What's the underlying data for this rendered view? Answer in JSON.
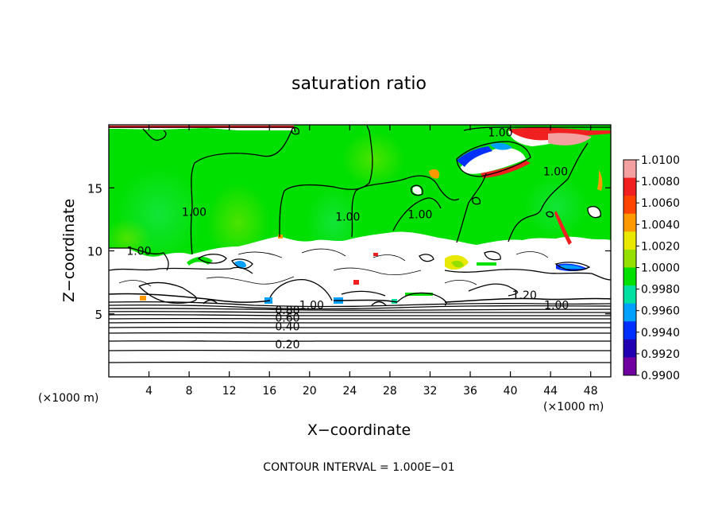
{
  "chart_data": {
    "type": "heatmap",
    "title": "saturation ratio",
    "xlabel": "X−coordinate",
    "ylabel": "Z−coordinate",
    "x_unit_left": "(×1000 m)",
    "x_unit_right": "(×1000 m)",
    "xlim": [
      0,
      50
    ],
    "ylim": [
      0,
      20
    ],
    "x_ticks": [
      4,
      8,
      12,
      16,
      20,
      24,
      28,
      32,
      36,
      40,
      44,
      48
    ],
    "y_ticks": [
      5,
      10,
      15
    ],
    "footer": "CONTOUR INTERVAL = 1.000E−01",
    "colorbar": {
      "levels": [
        "1.0100",
        "1.0080",
        "1.0060",
        "1.0040",
        "1.0020",
        "1.0000",
        "0.9980",
        "0.9960",
        "0.9940",
        "0.9920",
        "0.9900"
      ],
      "colors": [
        "#f4a0a0",
        "#f02020",
        "#ff4400",
        "#ff9900",
        "#e8e800",
        "#96e000",
        "#00e000",
        "#00e0a0",
        "#00a0ff",
        "#0030ff",
        "#2000b0",
        "#7000a0"
      ]
    },
    "contour_labels": [
      {
        "text": "1.00",
        "x": 39.0,
        "z": 19.4
      },
      {
        "text": "1.00",
        "x": 44.5,
        "z": 16.3
      },
      {
        "text": "1.00",
        "x": 8.5,
        "z": 13.1
      },
      {
        "text": "1.00",
        "x": 23.8,
        "z": 12.7
      },
      {
        "text": "1.00",
        "x": 31.0,
        "z": 12.9
      },
      {
        "text": "1.00",
        "x": 3.0,
        "z": 10.0
      },
      {
        "text": "1.20",
        "x": 41.4,
        "z": 6.5
      },
      {
        "text": "1.00",
        "x": 44.6,
        "z": 5.7
      },
      {
        "text": "1.00",
        "x": 20.2,
        "z": 5.7
      },
      {
        "text": "0.80",
        "x": 17.8,
        "z": 5.3
      },
      {
        "text": "0.60",
        "x": 17.8,
        "z": 4.7
      },
      {
        "text": "0.40",
        "x": 17.8,
        "z": 4.0
      },
      {
        "text": "0.20",
        "x": 17.8,
        "z": 2.6
      }
    ],
    "background_color": "#00e000",
    "subsaturated_color": "#ffffff"
  }
}
